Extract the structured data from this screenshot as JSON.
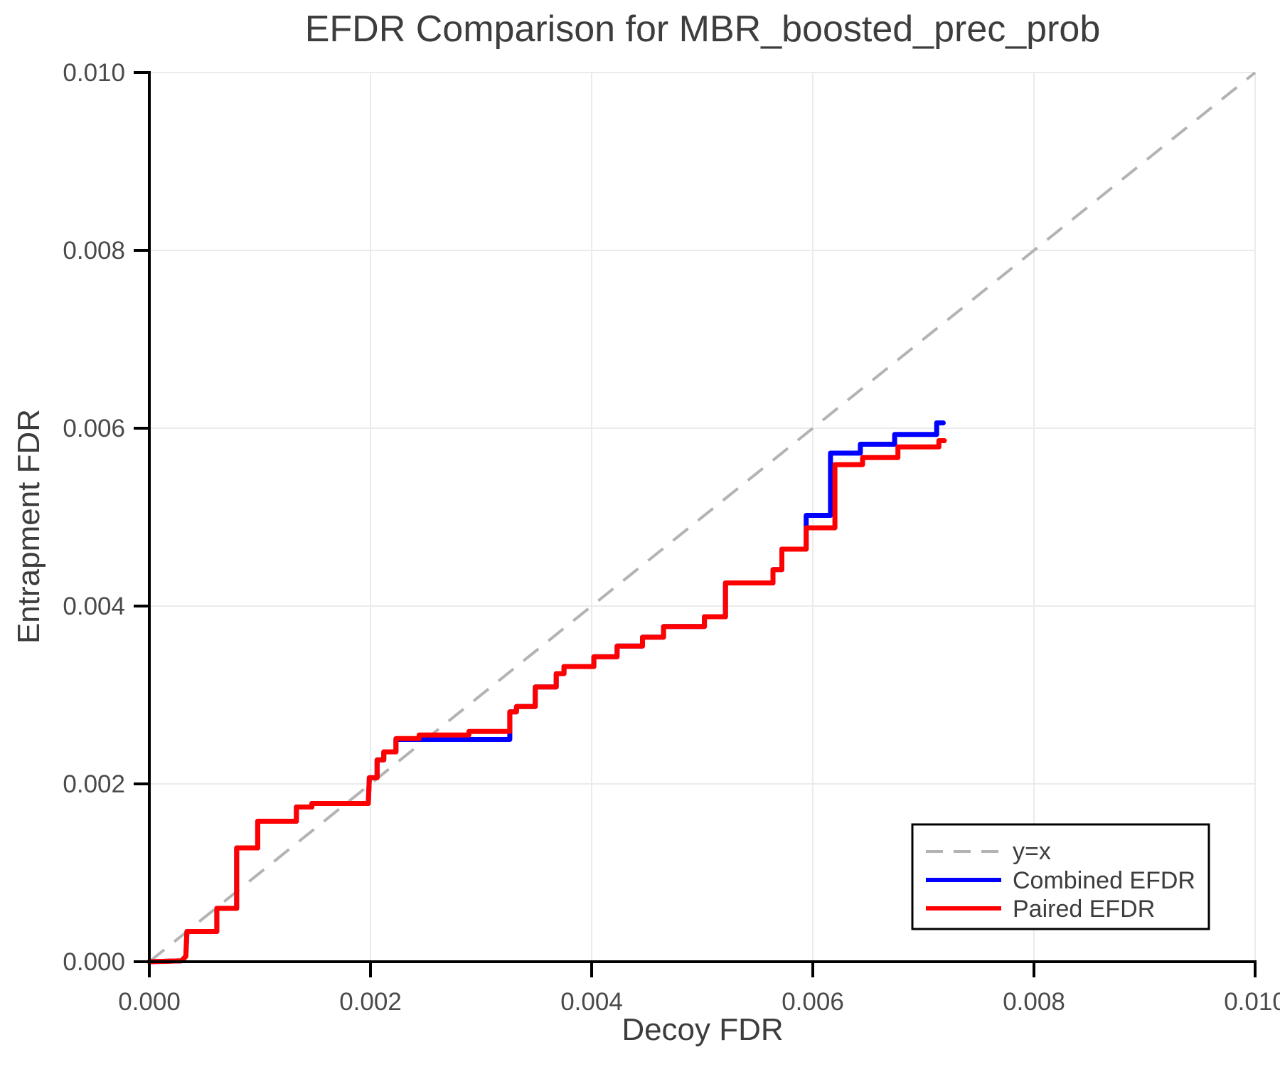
{
  "title": "EFDR Comparison for MBR_boosted_prec_prob",
  "axes": {
    "x_label": "Decoy FDR",
    "y_label": "Entrapment FDR",
    "x_tick_labels": [
      "0.000",
      "0.002",
      "0.004",
      "0.006",
      "0.008",
      "0.010"
    ],
    "y_tick_labels": [
      "0.000",
      "0.002",
      "0.004",
      "0.006",
      "0.008",
      "0.010"
    ]
  },
  "legend": {
    "entries": [
      {
        "label": "y=x",
        "style": "dashed",
        "color": "#b3b3b3"
      },
      {
        "label": "Combined EFDR",
        "style": "solid",
        "color": "#0000ff"
      },
      {
        "label": "Paired EFDR",
        "style": "solid",
        "color": "#ff0000"
      }
    ]
  },
  "colors": {
    "identity_line": "#b3b3b3",
    "combined_efdr": "#0000ff",
    "paired_efdr": "#ff0000",
    "grid": "#ebebeb",
    "text": "#3d3d3d"
  },
  "chart_data": {
    "type": "line",
    "title": "EFDR Comparison for MBR_boosted_prec_prob",
    "xlabel": "Decoy FDR",
    "ylabel": "Entrapment FDR",
    "xlim": [
      0.0,
      0.01
    ],
    "ylim": [
      0.0,
      0.01
    ],
    "x_ticks": [
      0.0,
      0.002,
      0.004,
      0.006,
      0.008,
      0.01
    ],
    "y_ticks": [
      0.0,
      0.002,
      0.004,
      0.006,
      0.008,
      0.01
    ],
    "grid": true,
    "legend_position": "lower right",
    "series": [
      {
        "name": "y=x",
        "style": "dashed",
        "color": "#b3b3b3",
        "points": [
          [
            0.0,
            0.0
          ],
          [
            0.01,
            0.01
          ]
        ]
      },
      {
        "name": "Combined EFDR",
        "style": "step",
        "color": "#0000ff",
        "points": [
          [
            0.0,
            0.0
          ],
          [
            0.00029,
            1e-05
          ],
          [
            0.00033,
            6e-05
          ],
          [
            0.00034,
            0.00034
          ],
          [
            0.00061,
            0.00034
          ],
          [
            0.00061,
            0.0006
          ],
          [
            0.00079,
            0.0006
          ],
          [
            0.00079,
            0.00128
          ],
          [
            0.00098,
            0.00128
          ],
          [
            0.00098,
            0.00158
          ],
          [
            0.00133,
            0.00158
          ],
          [
            0.00133,
            0.00174
          ],
          [
            0.00147,
            0.00174
          ],
          [
            0.00147,
            0.00178
          ],
          [
            0.00198,
            0.00178
          ],
          [
            0.00199,
            0.00207
          ],
          [
            0.00206,
            0.00207
          ],
          [
            0.00206,
            0.00227
          ],
          [
            0.00212,
            0.00227
          ],
          [
            0.00212,
            0.00236
          ],
          [
            0.00223,
            0.00236
          ],
          [
            0.00223,
            0.0025
          ],
          [
            0.00326,
            0.0025
          ],
          [
            0.00326,
            0.00281
          ],
          [
            0.00332,
            0.00281
          ],
          [
            0.00332,
            0.00287
          ],
          [
            0.00349,
            0.00287
          ],
          [
            0.00349,
            0.00309
          ],
          [
            0.00368,
            0.00309
          ],
          [
            0.00368,
            0.00324
          ],
          [
            0.00375,
            0.00324
          ],
          [
            0.00375,
            0.00332
          ],
          [
            0.00402,
            0.00332
          ],
          [
            0.00402,
            0.00343
          ],
          [
            0.00423,
            0.00343
          ],
          [
            0.00423,
            0.00355
          ],
          [
            0.00446,
            0.00355
          ],
          [
            0.00446,
            0.00365
          ],
          [
            0.00465,
            0.00365
          ],
          [
            0.00465,
            0.00377
          ],
          [
            0.00502,
            0.00377
          ],
          [
            0.00502,
            0.00388
          ],
          [
            0.00521,
            0.00388
          ],
          [
            0.00521,
            0.00426
          ],
          [
            0.00564,
            0.00426
          ],
          [
            0.00564,
            0.00441
          ],
          [
            0.00572,
            0.00441
          ],
          [
            0.00572,
            0.00464
          ],
          [
            0.00594,
            0.00464
          ],
          [
            0.00594,
            0.00502
          ],
          [
            0.00616,
            0.00502
          ],
          [
            0.00616,
            0.00572
          ],
          [
            0.00643,
            0.00572
          ],
          [
            0.00643,
            0.00582
          ],
          [
            0.00674,
            0.00582
          ],
          [
            0.00674,
            0.00593
          ],
          [
            0.00712,
            0.00593
          ],
          [
            0.00712,
            0.00606
          ],
          [
            0.00718,
            0.00606
          ]
        ]
      },
      {
        "name": "Paired EFDR",
        "style": "step",
        "color": "#ff0000",
        "points": [
          [
            0.0,
            0.0
          ],
          [
            0.00029,
            1e-05
          ],
          [
            0.00033,
            6e-05
          ],
          [
            0.00034,
            0.00034
          ],
          [
            0.00061,
            0.00034
          ],
          [
            0.00061,
            0.0006
          ],
          [
            0.00079,
            0.0006
          ],
          [
            0.00079,
            0.00128
          ],
          [
            0.00098,
            0.00128
          ],
          [
            0.00098,
            0.00158
          ],
          [
            0.00133,
            0.00158
          ],
          [
            0.00133,
            0.00174
          ],
          [
            0.00147,
            0.00174
          ],
          [
            0.00147,
            0.00178
          ],
          [
            0.00198,
            0.00178
          ],
          [
            0.00199,
            0.00207
          ],
          [
            0.00206,
            0.00207
          ],
          [
            0.00206,
            0.00227
          ],
          [
            0.00212,
            0.00227
          ],
          [
            0.00212,
            0.00236
          ],
          [
            0.00223,
            0.00236
          ],
          [
            0.00223,
            0.00251
          ],
          [
            0.00244,
            0.00251
          ],
          [
            0.00244,
            0.00255
          ],
          [
            0.00289,
            0.00255
          ],
          [
            0.00289,
            0.00259
          ],
          [
            0.00326,
            0.00259
          ],
          [
            0.00326,
            0.00281
          ],
          [
            0.00332,
            0.00281
          ],
          [
            0.00332,
            0.00287
          ],
          [
            0.00349,
            0.00287
          ],
          [
            0.00349,
            0.00309
          ],
          [
            0.00368,
            0.00309
          ],
          [
            0.00368,
            0.00324
          ],
          [
            0.00375,
            0.00324
          ],
          [
            0.00375,
            0.00332
          ],
          [
            0.00402,
            0.00332
          ],
          [
            0.00402,
            0.00343
          ],
          [
            0.00423,
            0.00343
          ],
          [
            0.00423,
            0.00355
          ],
          [
            0.00446,
            0.00355
          ],
          [
            0.00446,
            0.00365
          ],
          [
            0.00465,
            0.00365
          ],
          [
            0.00465,
            0.00377
          ],
          [
            0.00502,
            0.00377
          ],
          [
            0.00502,
            0.00388
          ],
          [
            0.00521,
            0.00388
          ],
          [
            0.00521,
            0.00426
          ],
          [
            0.00564,
            0.00426
          ],
          [
            0.00564,
            0.00441
          ],
          [
            0.00572,
            0.00441
          ],
          [
            0.00572,
            0.00464
          ],
          [
            0.00594,
            0.00464
          ],
          [
            0.00594,
            0.00488
          ],
          [
            0.0062,
            0.00488
          ],
          [
            0.0062,
            0.00559
          ],
          [
            0.00645,
            0.00559
          ],
          [
            0.00645,
            0.00567
          ],
          [
            0.00677,
            0.00567
          ],
          [
            0.00677,
            0.00579
          ],
          [
            0.00714,
            0.00579
          ],
          [
            0.00714,
            0.00586
          ],
          [
            0.00719,
            0.00586
          ]
        ]
      }
    ]
  }
}
